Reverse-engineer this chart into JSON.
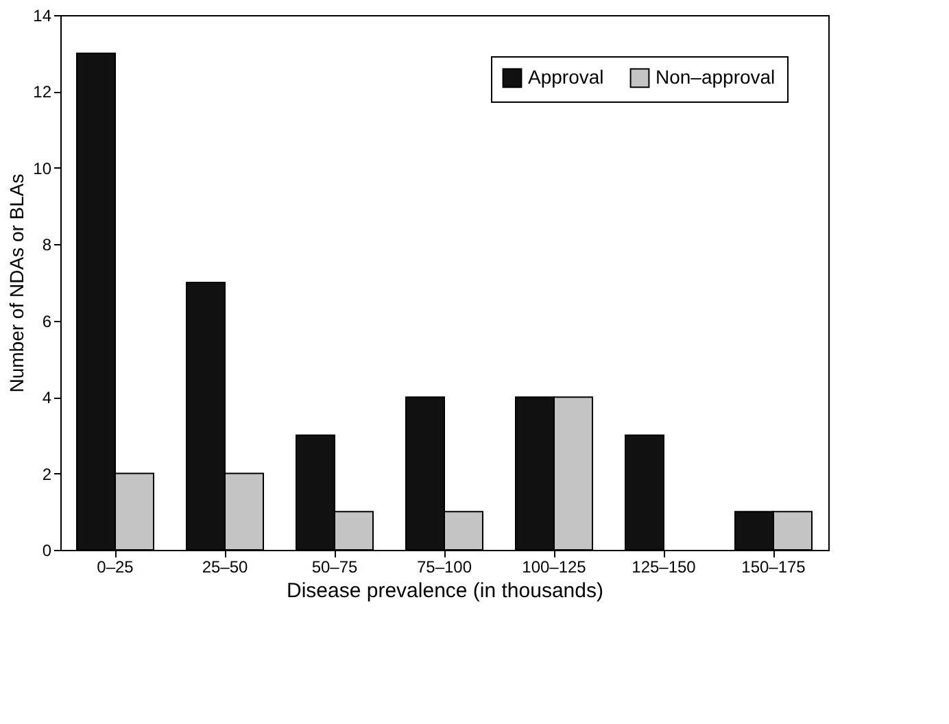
{
  "chart_data": {
    "type": "bar",
    "xlabel": "Disease prevalence (in thousands)",
    "ylabel": "Number of NDAs or BLAs",
    "categories": [
      "0–25",
      "25–50",
      "50–75",
      "75–100",
      "100–125",
      "125–150",
      "150–175"
    ],
    "series": [
      {
        "name": "Approval",
        "color": "#111111",
        "values": [
          13,
          7,
          3,
          4,
          4,
          3,
          1
        ]
      },
      {
        "name": "Non–approval",
        "color": "#c4c4c4",
        "values": [
          2,
          2,
          1,
          1,
          4,
          null,
          1
        ]
      }
    ],
    "ylim": [
      0,
      14
    ],
    "yticks": [
      0,
      2,
      4,
      6,
      8,
      10,
      12,
      14
    ],
    "grid": false,
    "legend": "top right"
  }
}
